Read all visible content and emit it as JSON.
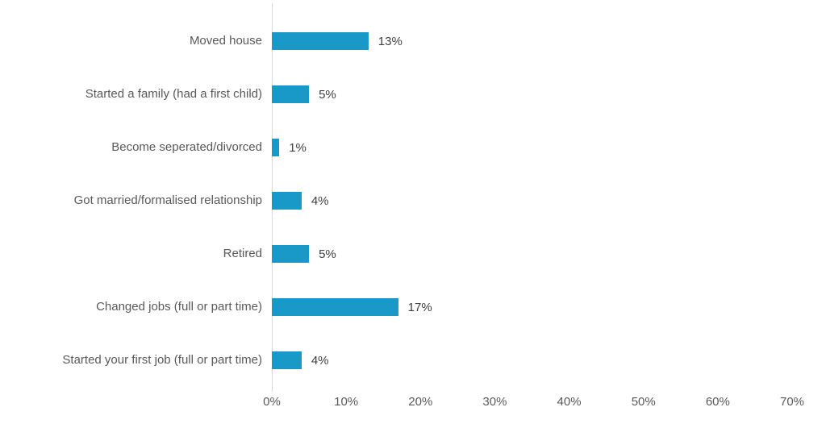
{
  "chart_data": {
    "type": "bar",
    "orientation": "horizontal",
    "title": "",
    "xlabel": "",
    "ylabel": "",
    "categories": [
      "Moved house",
      "Started a family (had a first child)",
      "Become seperated/divorced",
      "Got married/formalised relationship",
      "Retired",
      "Changed jobs (full or part time)",
      "Started your first job (full or part time)"
    ],
    "values": [
      13,
      5,
      1,
      4,
      5,
      17,
      4
    ],
    "value_labels": [
      "13%",
      "5%",
      "1%",
      "4%",
      "5%",
      "17%",
      "4%"
    ],
    "x_tick_labels": [
      "0%",
      "10%",
      "20%",
      "30%",
      "40%",
      "50%",
      "60%",
      "70%"
    ],
    "xlim": [
      0,
      70
    ],
    "x_tick_step": 10,
    "grid": false,
    "legend": false,
    "bar_color": "#1899C7",
    "category_text_color": "#595959",
    "value_label_color": "#404040",
    "axis_text_color": "#595959",
    "axis_line_color": "#D9D9D9"
  }
}
